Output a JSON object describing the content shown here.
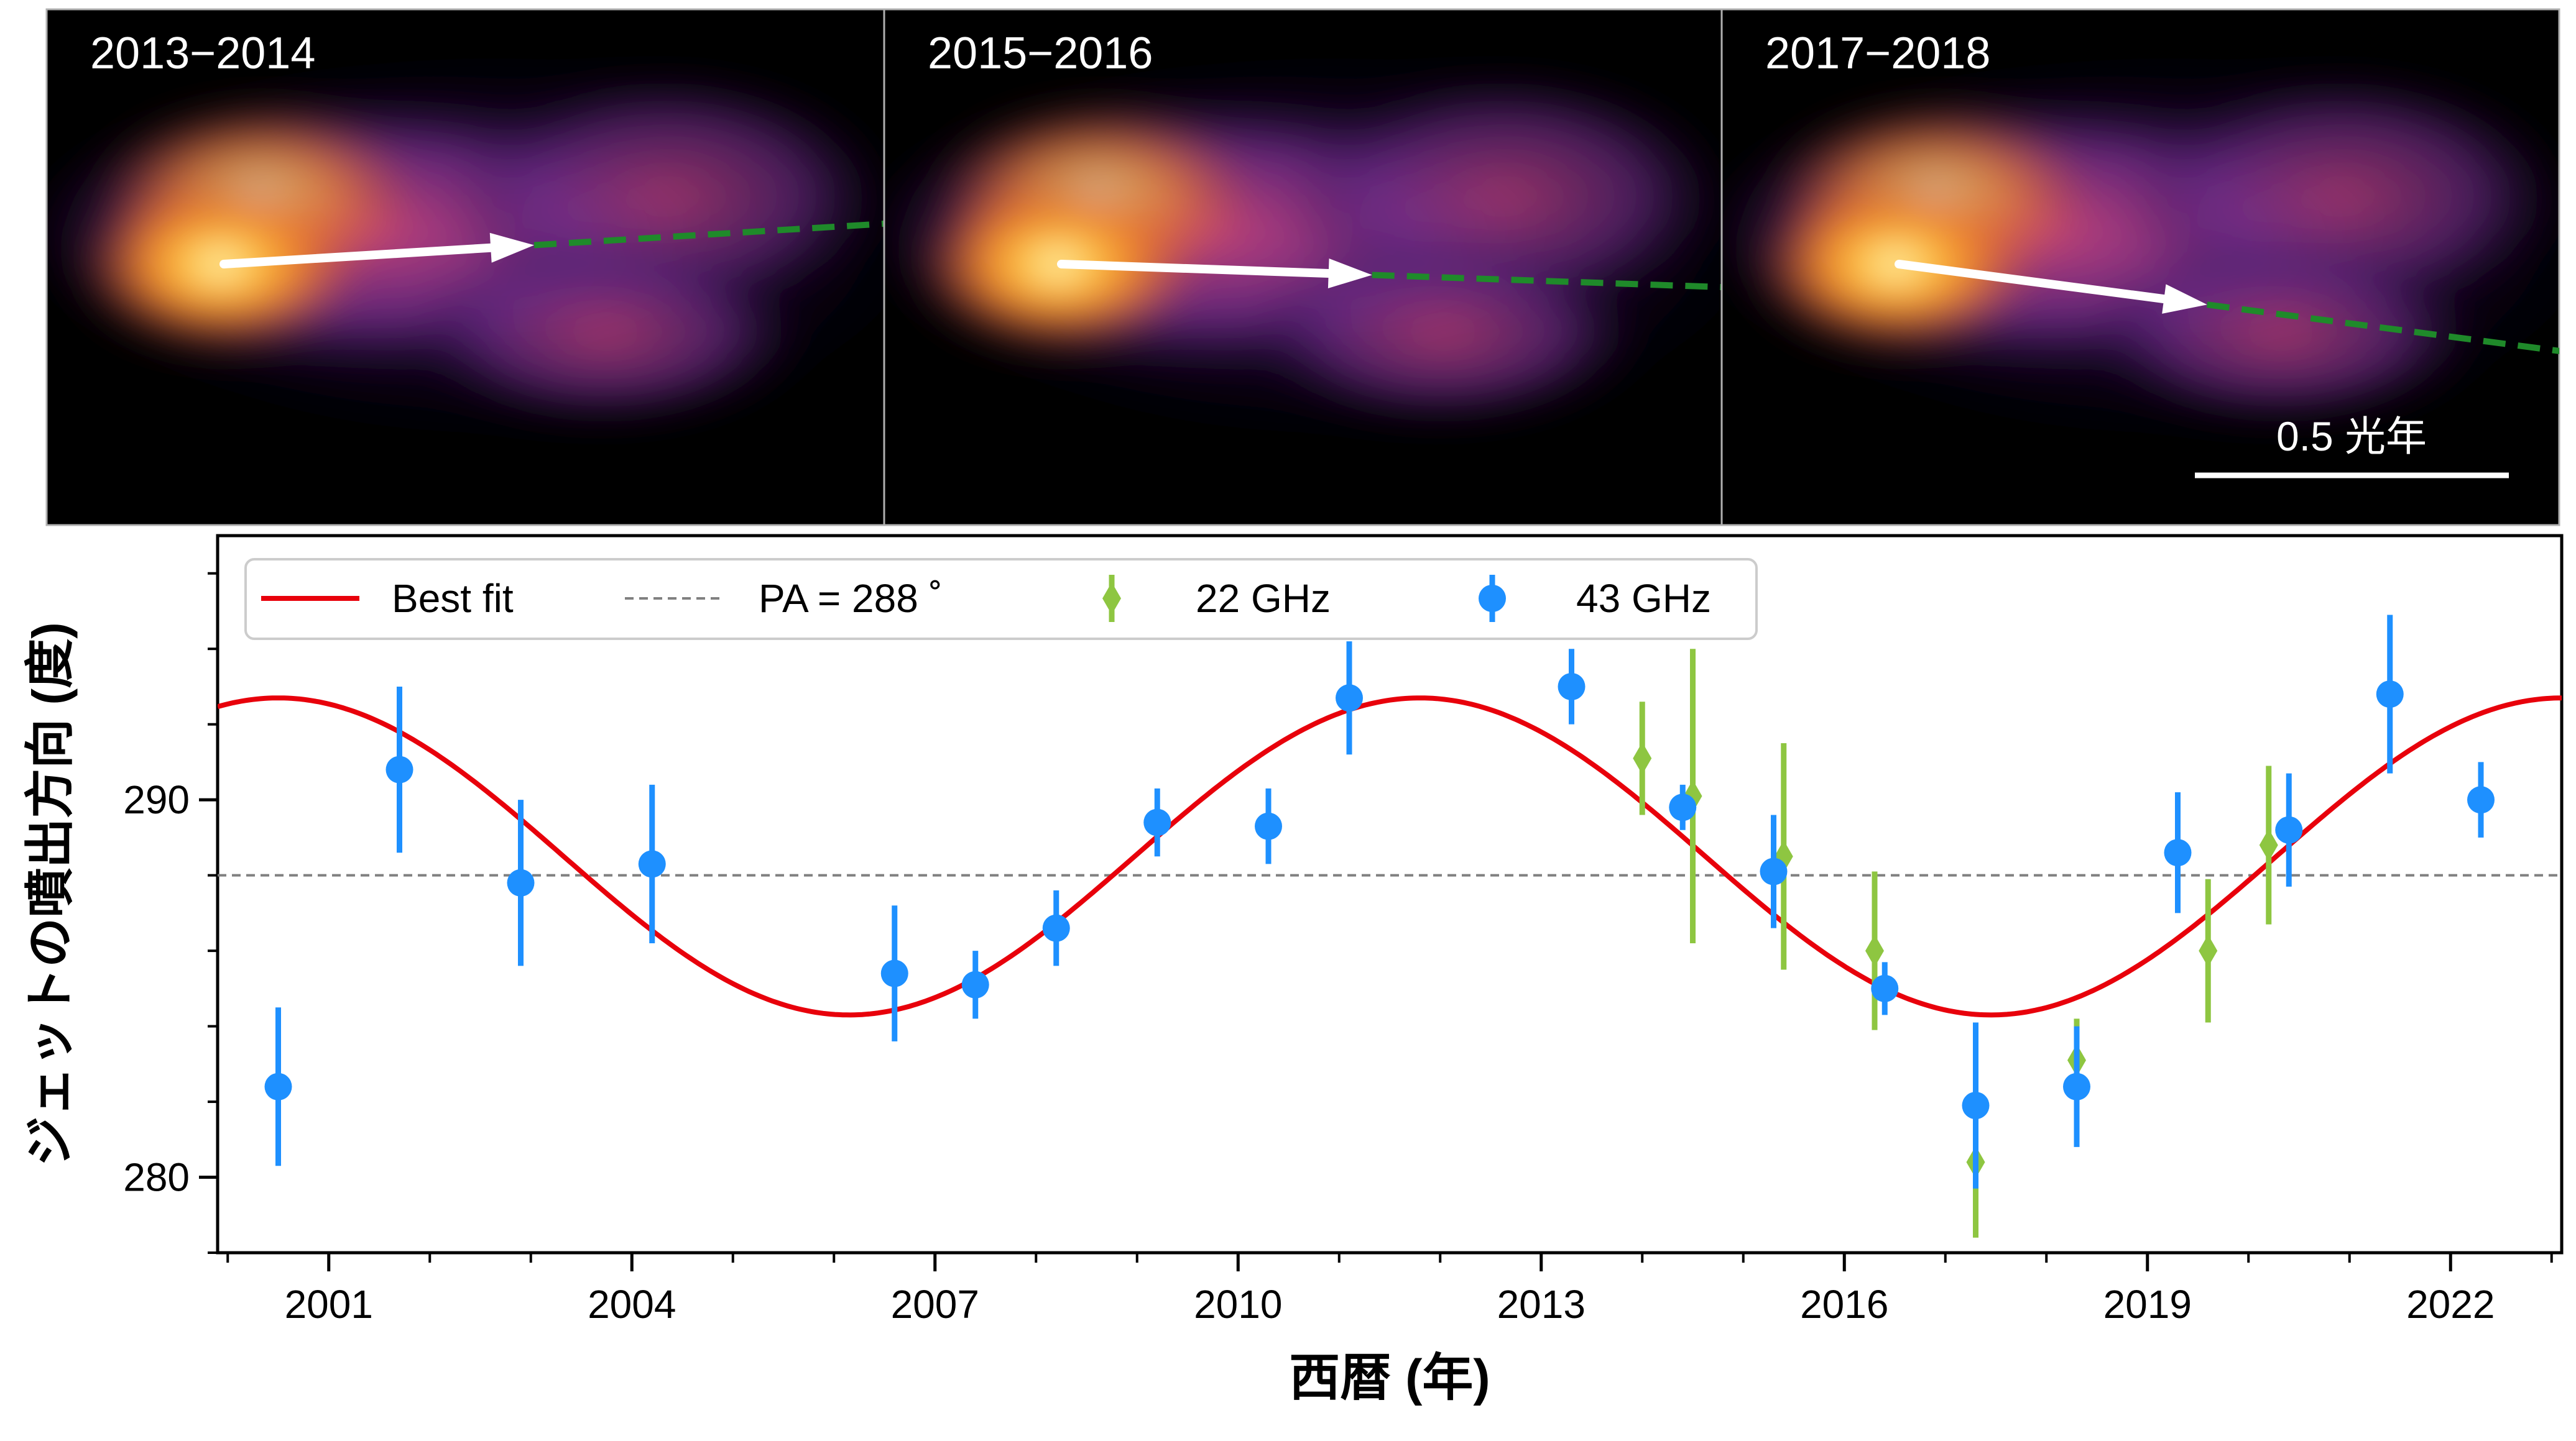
{
  "panels": [
    {
      "label": "2013−2014",
      "arrow_angle_deg": -3.5
    },
    {
      "label": "2015−2016",
      "arrow_angle_deg": 2.0
    },
    {
      "label": "2017−2018",
      "arrow_angle_deg": 7.5
    }
  ],
  "scale_bar": {
    "label": "0.5 光年"
  },
  "chart_data": {
    "type": "scatter",
    "xlabel": "西暦 (年)",
    "ylabel": "ジェットの噴出方向 (度)",
    "xlim": [
      1999.9,
      2023.1
    ],
    "ylim": [
      278.0,
      297.0
    ],
    "xticks": [
      2001,
      2004,
      2007,
      2010,
      2013,
      2016,
      2019,
      2022
    ],
    "yticks": [
      280,
      290
    ],
    "legend_position": "top",
    "best_fit": {
      "label": "Best fit",
      "center": 288.5,
      "amplitude": 4.2,
      "period_years": 11.3,
      "peak_year": 2000.5,
      "color": "#e8000b"
    },
    "reference_line": {
      "label": "PA = 288 ˚",
      "value": 288,
      "color": "#808080"
    },
    "series": [
      {
        "name": "22 GHz",
        "marker": "diamond",
        "color": "#8ec641",
        "points": [
          {
            "x": 2014.0,
            "y": 291.1,
            "err": 1.5
          },
          {
            "x": 2014.5,
            "y": 290.1,
            "err": 3.9
          },
          {
            "x": 2015.4,
            "y": 288.5,
            "err": 3.0
          },
          {
            "x": 2016.3,
            "y": 286.0,
            "err": 2.1
          },
          {
            "x": 2017.3,
            "y": 280.4,
            "err": 2.0
          },
          {
            "x": 2018.3,
            "y": 283.1,
            "err": 1.1
          },
          {
            "x": 2019.6,
            "y": 286.0,
            "err": 1.9
          },
          {
            "x": 2020.2,
            "y": 288.8,
            "err": 2.1
          }
        ]
      },
      {
        "name": "43 GHz",
        "marker": "circle",
        "color": "#1e90ff",
        "points": [
          {
            "x": 2000.5,
            "y": 282.4,
            "err": 2.1
          },
          {
            "x": 2001.7,
            "y": 290.8,
            "err": 2.2
          },
          {
            "x": 2002.9,
            "y": 287.8,
            "err": 2.2
          },
          {
            "x": 2004.2,
            "y": 288.3,
            "err": 2.1
          },
          {
            "x": 2006.6,
            "y": 285.4,
            "err": 1.8
          },
          {
            "x": 2007.4,
            "y": 285.1,
            "err": 0.9
          },
          {
            "x": 2008.2,
            "y": 286.6,
            "err": 1.0
          },
          {
            "x": 2009.2,
            "y": 289.4,
            "err": 0.9
          },
          {
            "x": 2010.3,
            "y": 289.3,
            "err": 1.0
          },
          {
            "x": 2011.1,
            "y": 292.7,
            "err": 1.5
          },
          {
            "x": 2013.3,
            "y": 293.0,
            "err": 1.0
          },
          {
            "x": 2014.4,
            "y": 289.8,
            "err": 0.6
          },
          {
            "x": 2015.3,
            "y": 288.1,
            "err": 1.5
          },
          {
            "x": 2016.4,
            "y": 285.0,
            "err": 0.7
          },
          {
            "x": 2017.3,
            "y": 281.9,
            "err": 2.2
          },
          {
            "x": 2018.3,
            "y": 282.4,
            "err": 1.6
          },
          {
            "x": 2019.3,
            "y": 288.6,
            "err": 1.6
          },
          {
            "x": 2020.4,
            "y": 289.2,
            "err": 1.5
          },
          {
            "x": 2021.4,
            "y": 292.8,
            "err": 2.1
          },
          {
            "x": 2022.3,
            "y": 290.0,
            "err": 1.0
          }
        ]
      }
    ]
  }
}
